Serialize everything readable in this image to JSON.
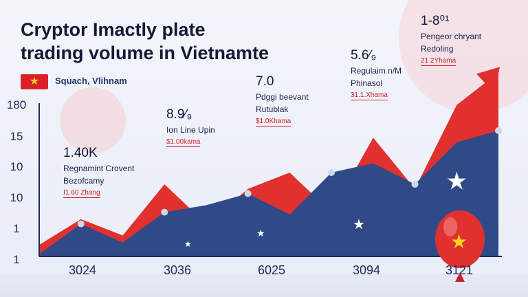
{
  "title_line1": "Cryptor Imactly plate",
  "title_line2": "trading volume in Vietnamte",
  "location_label": "Squach, Vlihnam",
  "colors": {
    "red_series": "#e0312f",
    "blue_series": "#2f4a86",
    "background": "#eef1f8",
    "axis": "#1d2a5c"
  },
  "icons": [
    "vietnam-flag-icon",
    "star-icon",
    "balloon-icon",
    "coin-icon"
  ],
  "chart_data": {
    "type": "area",
    "title": "Cryptor Imactly plate trading volume in Vietnamte",
    "xlabel": "",
    "ylabel": "",
    "y_tick_labels": [
      "180",
      "15",
      "10",
      "10",
      "1",
      "1"
    ],
    "x_tick_labels": [
      "3024",
      "3036",
      "6025",
      "3094",
      "3121"
    ],
    "x": [
      0,
      1,
      2,
      3,
      4,
      5,
      6,
      7,
      8,
      9,
      10,
      11
    ],
    "series": [
      {
        "name": "",
        "color": "#e0312f",
        "values": [
          0.5,
          1.6,
          0.9,
          3.1,
          1.4,
          2.9,
          3.6,
          1.9,
          5.1,
          2.9,
          6.5,
          7.9
        ]
      },
      {
        "name": "",
        "color": "#2f4a86",
        "values": [
          0.1,
          1.4,
          0.6,
          1.9,
          2.2,
          2.7,
          1.8,
          3.6,
          4.0,
          3.1,
          4.9,
          5.4
        ]
      }
    ],
    "ylim": [
      0,
      8.5
    ],
    "grid": false,
    "legend": "none",
    "annotations": [
      {
        "big": "1.40K",
        "sub1": "Regnamint Crovent",
        "sub2": "Bezofcamy",
        "red": "Ⅰ1.60 Zhang"
      },
      {
        "big": "8.9⁄₉",
        "sub1": "Ion Line Upin",
        "sub2": "",
        "red": "$1.00kama"
      },
      {
        "big": "7.0",
        "sub1": "Pdggi beevant",
        "sub2": "Rutublak",
        "red": "$1.0Khama"
      },
      {
        "big": "5.6⁄₉",
        "sub1": "Regulaim n/M",
        "sub2": "Phinasol",
        "red": "31.1.Xhama"
      },
      {
        "big": "1-8⁰¹",
        "sub1": "Pengeor chryant",
        "sub2": "Redoling",
        "red": "21 2Yhama"
      }
    ]
  }
}
